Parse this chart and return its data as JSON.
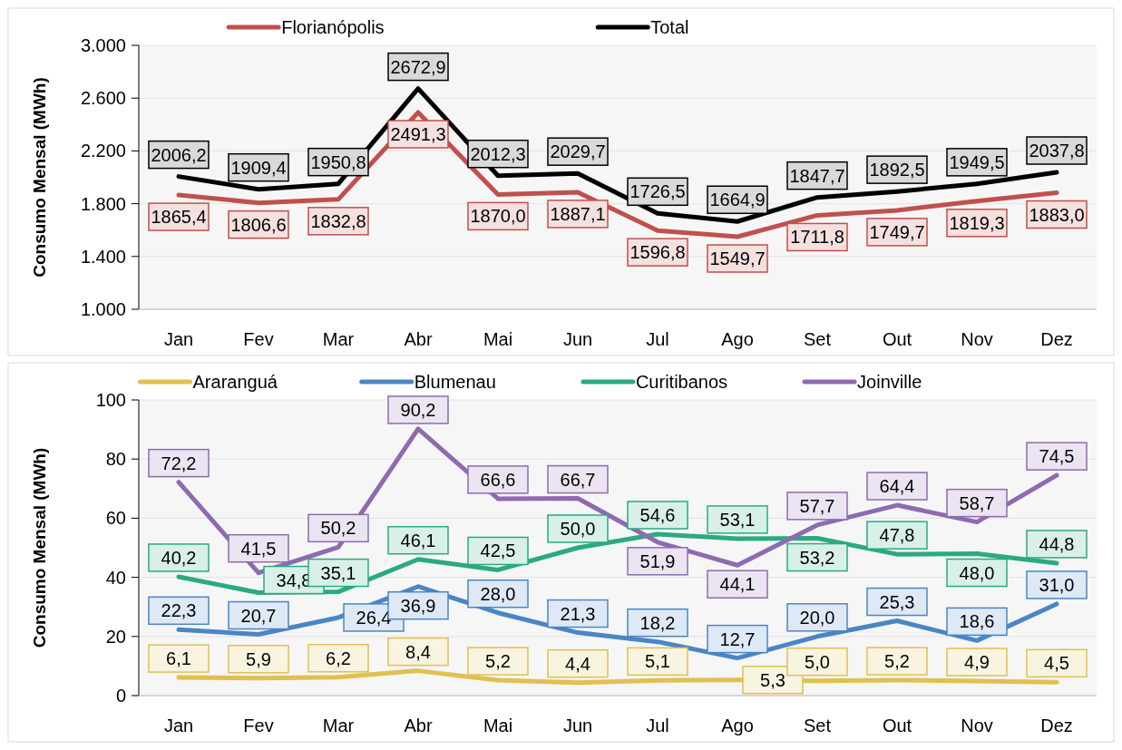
{
  "chart_data": [
    {
      "type": "line",
      "ylabel": "Consumo Mensal (MWh)",
      "categories": [
        "Jan",
        "Fev",
        "Mar",
        "Abr",
        "Mai",
        "Jun",
        "Jul",
        "Ago",
        "Set",
        "Out",
        "Nov",
        "Dez"
      ],
      "ylim": [
        1000,
        3000
      ],
      "yticks": [
        {
          "value": 1000,
          "label": "1.000"
        },
        {
          "value": 1400,
          "label": "1.400"
        },
        {
          "value": 1800,
          "label": "1.800"
        },
        {
          "value": 2200,
          "label": "2.200"
        },
        {
          "value": 2600,
          "label": "2.600"
        },
        {
          "value": 3000,
          "label": "3.000"
        }
      ],
      "grid": "y",
      "legend": "top",
      "marker": "none",
      "line_style": "solid",
      "series": [
        {
          "name": "Florianópolis",
          "color": "#c0504d",
          "values": [
            1865.4,
            1806.6,
            1832.8,
            2491.3,
            1870.0,
            1887.1,
            1596.8,
            1549.7,
            1711.8,
            1749.7,
            1819.3,
            1883.0
          ],
          "value_labels": [
            "1865,4",
            "1806,6",
            "1832,8",
            "2491,3",
            "1870,0",
            "1887,1",
            "1596,8",
            "1549,7",
            "1711,8",
            "1749,7",
            "1819,3",
            "1883,0"
          ]
        },
        {
          "name": "Total",
          "color": "#000000",
          "values": [
            2006.2,
            1909.4,
            1950.8,
            2672.9,
            2012.3,
            2029.7,
            1726.5,
            1664.9,
            1847.7,
            1892.5,
            1949.5,
            2037.8
          ],
          "value_labels": [
            "2006,2",
            "1909,4",
            "1950,8",
            "2672,9",
            "2012,3",
            "2029,7",
            "1726,5",
            "1664,9",
            "1847,7",
            "1892,5",
            "1949,5",
            "2037,8"
          ]
        }
      ]
    },
    {
      "type": "line",
      "ylabel": "Consumo Mensal (MWh)",
      "categories": [
        "Jan",
        "Fev",
        "Mar",
        "Abr",
        "Mai",
        "Jun",
        "Jul",
        "Ago",
        "Set",
        "Out",
        "Nov",
        "Dez"
      ],
      "ylim": [
        0,
        100
      ],
      "yticks": [
        0,
        20,
        40,
        60,
        80,
        100
      ],
      "grid": "y",
      "legend": "top",
      "marker": "none",
      "line_style": "solid",
      "series": [
        {
          "name": "Araranguá",
          "color": "#e0c050",
          "values": [
            6.1,
            5.9,
            6.2,
            8.4,
            5.2,
            4.4,
            5.1,
            5.3,
            5.0,
            5.2,
            4.9,
            4.5
          ],
          "value_labels": [
            "6,1",
            "5,9",
            "6,2",
            "8,4",
            "5,2",
            "4,4",
            "5,1",
            "5,3",
            "5,0",
            "5,2",
            "4,9",
            "4,5"
          ]
        },
        {
          "name": "Blumenau",
          "color": "#4a86c5",
          "values": [
            22.3,
            20.7,
            26.4,
            36.9,
            28.0,
            21.3,
            18.2,
            12.7,
            20.0,
            25.3,
            18.6,
            31.0
          ],
          "value_labels": [
            "22,3",
            "20,7",
            "26,4",
            "36,9",
            "28,0",
            "21,3",
            "18,2",
            "12,7",
            "20,0",
            "25,3",
            "18,6",
            "31,0"
          ]
        },
        {
          "name": "Curitibanos",
          "color": "#2aaa80",
          "values": [
            40.2,
            34.8,
            35.1,
            46.1,
            42.5,
            50.0,
            54.6,
            53.1,
            53.2,
            47.8,
            48.0,
            44.8
          ],
          "value_labels": [
            "40,2",
            "34,8",
            "35,1",
            "46,1",
            "42,5",
            "50,0",
            "54,6",
            "53,1",
            "53,2",
            "47,8",
            "48,0",
            "44,8"
          ]
        },
        {
          "name": "Joinville",
          "color": "#8e6bb0",
          "values": [
            72.2,
            41.5,
            50.2,
            90.2,
            66.6,
            66.7,
            51.9,
            44.1,
            57.7,
            64.4,
            58.7,
            74.5
          ],
          "value_labels": [
            "72,2",
            "41,5",
            "50,2",
            "90,2",
            "66,6",
            "66,7",
            "51,9",
            "44,1",
            "57,7",
            "64,4",
            "58,7",
            "74,5"
          ]
        }
      ]
    }
  ]
}
